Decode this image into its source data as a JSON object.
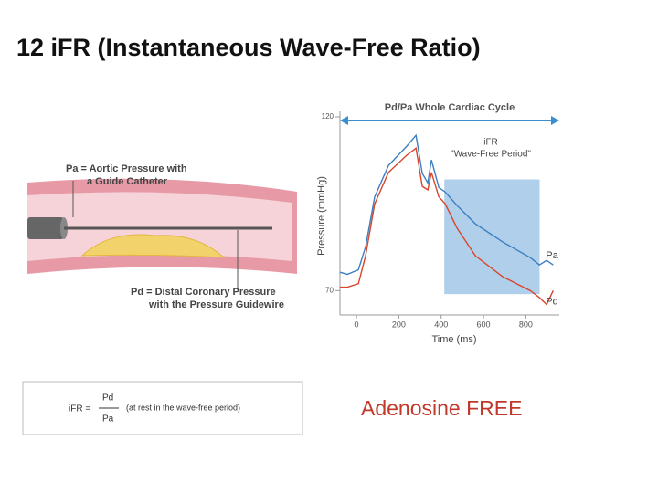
{
  "header": {
    "title": "12 iFR (Instantaneous Wave-Free Ratio)"
  },
  "illustration": {
    "pa_label": "Pa = Aortic Pressure with",
    "pa_label_2": "a Guide Catheter",
    "pd_label": "Pd = Distal Coronary Pressure",
    "pd_label_2": "with the Pressure Guidewire"
  },
  "chart_data": {
    "type": "line",
    "title": "Pd/Pa Whole Cardiac Cycle",
    "annotation": "iFR",
    "annotation_2": "\"Wave-Free Period\"",
    "x_label": "Time (ms)",
    "y_label": "Pressure (mmHg)",
    "xlim": [
      -78,
      958
    ],
    "ylim": [
      63,
      120
    ],
    "xticks": [
      0,
      200,
      400,
      600,
      800
    ],
    "yticks": [
      70,
      120
    ],
    "shade": {
      "x": [
        415,
        865
      ],
      "y": [
        69,
        102
      ],
      "color": "#9cc3e6"
    },
    "x": [
      -78,
      -43,
      9,
      43,
      86,
      151,
      238,
      281,
      311,
      337,
      354,
      389,
      419,
      475,
      562,
      691,
      821,
      864,
      898,
      929
    ],
    "series": [
      {
        "name": "Pa",
        "color": "#3a7fc1",
        "values": [
          75.3,
          74.7,
          76,
          82.6,
          97,
          106,
          111.6,
          114.7,
          103.7,
          101,
          107.6,
          99.7,
          98.4,
          94.5,
          89.2,
          84,
          79.5,
          77.4,
          78.7,
          77.4
        ]
      },
      {
        "name": "Pd",
        "color": "#d9452b",
        "values": [
          71,
          71,
          72,
          80,
          95,
          104,
          109,
          111,
          100,
          99,
          104,
          97,
          95,
          88,
          80,
          74,
          70,
          68,
          66,
          70
        ]
      }
    ]
  },
  "formula": {
    "lhs": "iFR =",
    "numerator": "Pd",
    "denominator": "Pa",
    "note": "(at rest in the wave-free period)"
  },
  "footer": {
    "text": "Adenosine FREE"
  }
}
